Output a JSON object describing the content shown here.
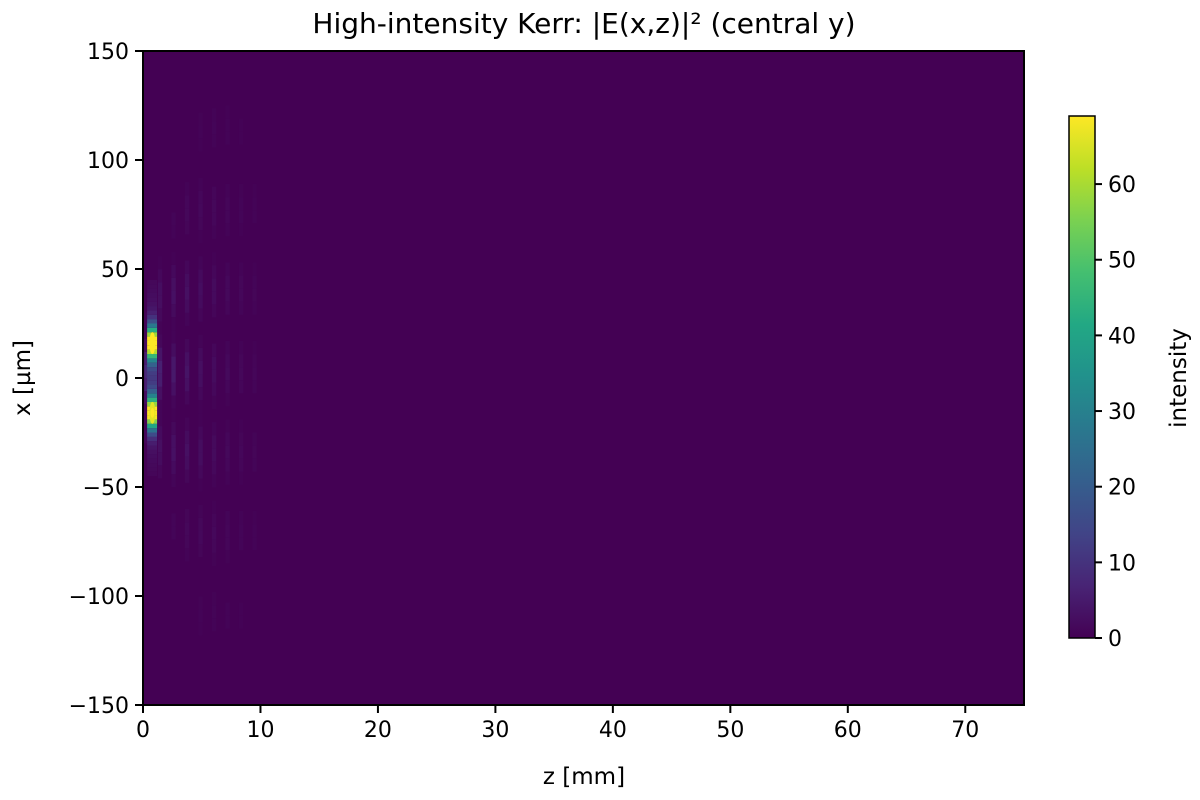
{
  "chart_data": {
    "type": "heatmap",
    "title": "High-intensity Kerr: |E(x,z)|² (central y)",
    "xlabel": "z [mm]",
    "ylabel": "x [µm]",
    "xlim": [
      0,
      75
    ],
    "ylim": [
      -150,
      150
    ],
    "x_ticks": [
      0,
      10,
      20,
      30,
      40,
      50,
      60,
      70
    ],
    "y_ticks": [
      -150,
      -100,
      -50,
      0,
      50,
      100,
      150
    ],
    "x_tick_labels": [
      "0",
      "10",
      "20",
      "30",
      "40",
      "50",
      "60",
      "70"
    ],
    "y_tick_labels": [
      "−150",
      "−100",
      "−50",
      "0",
      "50",
      "100",
      "150"
    ],
    "colormap": "viridis",
    "colorbar": {
      "label": "intensity",
      "range": [
        0,
        69
      ],
      "ticks": [
        0,
        10,
        20,
        30,
        40,
        50,
        60
      ],
      "tick_labels": [
        "0",
        "10",
        "20",
        "30",
        "40",
        "50",
        "60"
      ]
    },
    "background_value": 0,
    "hotspots": [
      {
        "z": 0.8,
        "x": 16,
        "intensity": 69
      },
      {
        "z": 0.8,
        "x": -16,
        "intensity": 66
      }
    ],
    "pattern": {
      "description_free": true,
      "fringe_z_start": 0.3,
      "fringe_z_end": 10,
      "fringe_spacing_z": 1.15,
      "fringe_peak_intensity": 8
    },
    "grid": false,
    "legend": "none"
  }
}
